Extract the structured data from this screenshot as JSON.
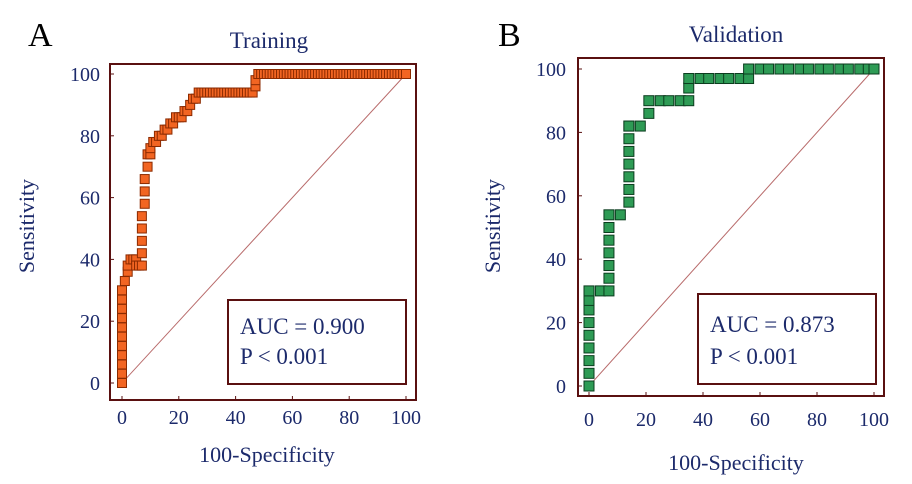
{
  "chart_data": [
    {
      "type": "line",
      "panel_label": "A",
      "title": "Training",
      "xlabel": "100-Specificity",
      "ylabel": "Sensitivity",
      "xlim": [
        0,
        100
      ],
      "ylim": [
        0,
        100
      ],
      "xticks": [
        0,
        20,
        40,
        60,
        80,
        100
      ],
      "yticks": [
        0,
        20,
        40,
        60,
        80,
        100
      ],
      "color": "#f26522",
      "marker_edge": "#8b2a00",
      "annotation": {
        "auc": "AUC = 0.900",
        "p": "P < 0.001"
      },
      "series": [
        {
          "name": "ROC",
          "x": [
            0,
            0,
            0,
            0,
            0,
            0,
            0,
            0,
            0,
            0,
            0,
            1,
            2,
            2,
            3,
            4,
            5,
            5,
            6,
            7,
            7,
            7,
            7,
            7,
            8,
            8,
            8,
            9,
            9,
            10,
            10,
            11,
            12,
            13,
            14,
            15,
            16,
            17,
            18,
            19,
            20,
            21,
            22,
            23,
            24,
            25,
            26,
            27,
            28,
            29,
            30,
            31,
            32,
            33,
            34,
            35,
            36,
            37,
            38,
            39,
            40,
            41,
            42,
            43,
            44,
            45,
            46,
            47,
            47,
            48,
            49,
            50,
            51,
            52,
            53,
            54,
            55,
            56,
            57,
            58,
            59,
            60,
            61,
            62,
            63,
            64,
            65,
            66,
            67,
            68,
            69,
            70,
            71,
            72,
            73,
            74,
            75,
            76,
            77,
            78,
            79,
            80,
            81,
            82,
            83,
            84,
            85,
            86,
            87,
            88,
            89,
            90,
            91,
            92,
            93,
            94,
            95,
            96,
            97,
            98,
            99,
            100
          ],
          "y": [
            0,
            3,
            6,
            9,
            12,
            15,
            18,
            21,
            24,
            27,
            30,
            33,
            36,
            38,
            40,
            40,
            40,
            38,
            38,
            38,
            42,
            46,
            50,
            54,
            58,
            62,
            66,
            70,
            74,
            74,
            76,
            78,
            78,
            80,
            80,
            82,
            82,
            84,
            84,
            86,
            86,
            86,
            88,
            88,
            90,
            92,
            92,
            94,
            94,
            94,
            94,
            94,
            94,
            94,
            94,
            94,
            94,
            94,
            94,
            94,
            94,
            94,
            94,
            94,
            94,
            94,
            94,
            96,
            98,
            100,
            100,
            100,
            100,
            100,
            100,
            100,
            100,
            100,
            100,
            100,
            100,
            100,
            100,
            100,
            100,
            100,
            100,
            100,
            100,
            100,
            100,
            100,
            100,
            100,
            100,
            100,
            100,
            100,
            100,
            100,
            100,
            100,
            100,
            100,
            100,
            100,
            100,
            100,
            100,
            100,
            100,
            100,
            100,
            100,
            100,
            100,
            100,
            100,
            100,
            100,
            100,
            100
          ]
        },
        {
          "name": "Reference",
          "x": [
            0,
            100
          ],
          "y": [
            0,
            100
          ]
        }
      ]
    },
    {
      "type": "line",
      "panel_label": "B",
      "title": "Validation",
      "xlabel": "100-Specificity",
      "ylabel": "Sensitivity",
      "xlim": [
        0,
        100
      ],
      "ylim": [
        0,
        100
      ],
      "xticks": [
        0,
        20,
        40,
        60,
        80,
        100
      ],
      "yticks": [
        0,
        20,
        40,
        60,
        80,
        100
      ],
      "color": "#2e9b55",
      "marker_edge": "#0b3d1e",
      "annotation": {
        "auc": "AUC = 0.873",
        "p": "P < 0.001"
      },
      "series": [
        {
          "name": "ROC",
          "x": [
            0,
            0,
            0,
            0,
            0,
            0,
            0,
            0,
            0,
            4,
            7,
            7,
            7,
            7,
            7,
            7,
            7,
            11,
            14,
            14,
            14,
            14,
            14,
            14,
            14,
            14,
            18,
            21,
            21,
            25,
            28,
            32,
            35,
            35,
            35,
            39,
            42,
            46,
            49,
            53,
            56,
            56,
            60,
            63,
            67,
            70,
            74,
            77,
            81,
            84,
            88,
            91,
            95,
            98,
            100
          ],
          "y": [
            0,
            4,
            8,
            12,
            16,
            20,
            24,
            27,
            30,
            30,
            30,
            34,
            38,
            42,
            46,
            50,
            54,
            54,
            58,
            62,
            66,
            70,
            74,
            78,
            82,
            82,
            82,
            86,
            90,
            90,
            90,
            90,
            90,
            94,
            97,
            97,
            97,
            97,
            97,
            97,
            97,
            100,
            100,
            100,
            100,
            100,
            100,
            100,
            100,
            100,
            100,
            100,
            100,
            100,
            100
          ]
        },
        {
          "name": "Reference",
          "x": [
            0,
            100
          ],
          "y": [
            0,
            100
          ]
        }
      ]
    }
  ]
}
